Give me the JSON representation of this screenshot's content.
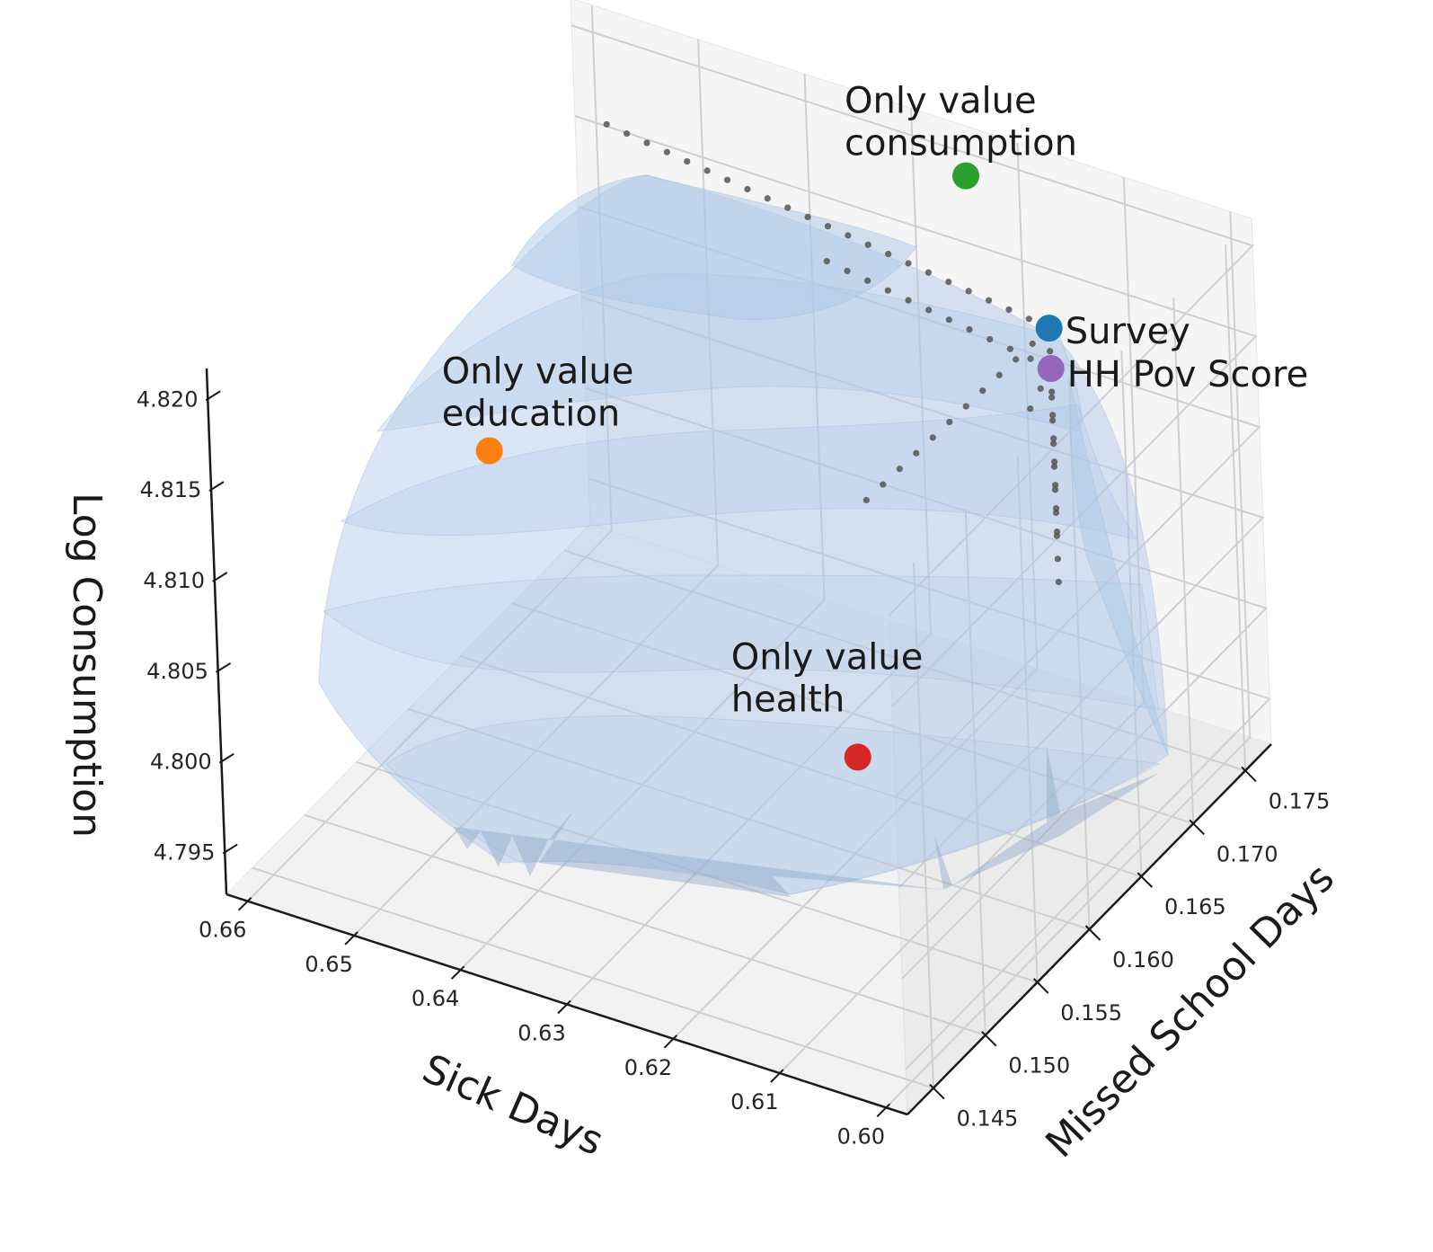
{
  "chart_data": {
    "type": "scatter",
    "projection": "3d",
    "title": "",
    "xlabel": "Sick Days",
    "ylabel": "Missed School Days",
    "zlabel": "Log Consumption",
    "xlim": [
      0.598,
      0.662
    ],
    "ylim": [
      0.1425,
      0.1775
    ],
    "zlim": [
      4.7925,
      4.8215
    ],
    "x_ticks": [
      "0.66",
      "0.65",
      "0.64",
      "0.63",
      "0.62",
      "0.61",
      "0.60"
    ],
    "y_ticks": [
      "0.175",
      "0.170",
      "0.165",
      "0.160",
      "0.155",
      "0.150",
      "0.145"
    ],
    "z_ticks": [
      "4.820",
      "4.815",
      "4.810",
      "4.805",
      "4.800",
      "4.795"
    ],
    "grid": true,
    "surface": {
      "color": "#aec7e8",
      "opacity": 0.55,
      "description": "translucent blue surface (Pareto frontier)"
    },
    "points": [
      {
        "label": "Only value consumption",
        "lines": [
          "Only value",
          "consumption"
        ],
        "x": 0.624,
        "y": 0.1765,
        "z": 4.8195,
        "color": "#2ca02c"
      },
      {
        "label": "Survey",
        "lines": [
          "Survey"
        ],
        "x": 0.612,
        "y": 0.172,
        "z": 4.816,
        "color": "#1f77b4"
      },
      {
        "label": "HH Pov Score",
        "lines": [
          "HH Pov Score"
        ],
        "x": 0.613,
        "y": 0.173,
        "z": 4.813,
        "color": "#9467bd"
      },
      {
        "label": "Only value education",
        "lines": [
          "Only value",
          "education"
        ],
        "x": 0.6585,
        "y": 0.165,
        "z": 4.8045,
        "color": "#ff7f0e"
      },
      {
        "label": "Only value health",
        "lines": [
          "Only value",
          "health"
        ],
        "x": 0.6035,
        "y": 0.1445,
        "z": 4.81,
        "color": "#d62728"
      }
    ],
    "dotted_paths": [
      {
        "name": "survey-horizontal-left",
        "points": [
          [
            0.6585,
            0.177,
            4.8155
          ],
          [
            0.612,
            0.172,
            4.816
          ]
        ]
      },
      {
        "name": "survey-horizontal-right",
        "points": [
          [
            0.612,
            0.172,
            4.816
          ],
          [
            0.611,
            0.1535,
            4.8175
          ]
        ]
      },
      {
        "name": "survey-vertical",
        "points": [
          [
            0.612,
            0.172,
            4.816
          ],
          [
            0.612,
            0.172,
            4.802
          ]
        ]
      },
      {
        "name": "hhpov-horizontal-left",
        "points": [
          [
            0.6365,
            0.1755,
            4.813
          ],
          [
            0.613,
            0.173,
            4.813
          ]
        ]
      },
      {
        "name": "hhpov-horizontal-right",
        "points": [
          [
            0.613,
            0.173,
            4.813
          ],
          [
            0.611,
            0.169,
            4.8135
          ]
        ]
      },
      {
        "name": "hhpov-vertical",
        "points": [
          [
            0.613,
            0.173,
            4.813
          ],
          [
            0.613,
            0.173,
            4.804
          ]
        ]
      }
    ]
  }
}
